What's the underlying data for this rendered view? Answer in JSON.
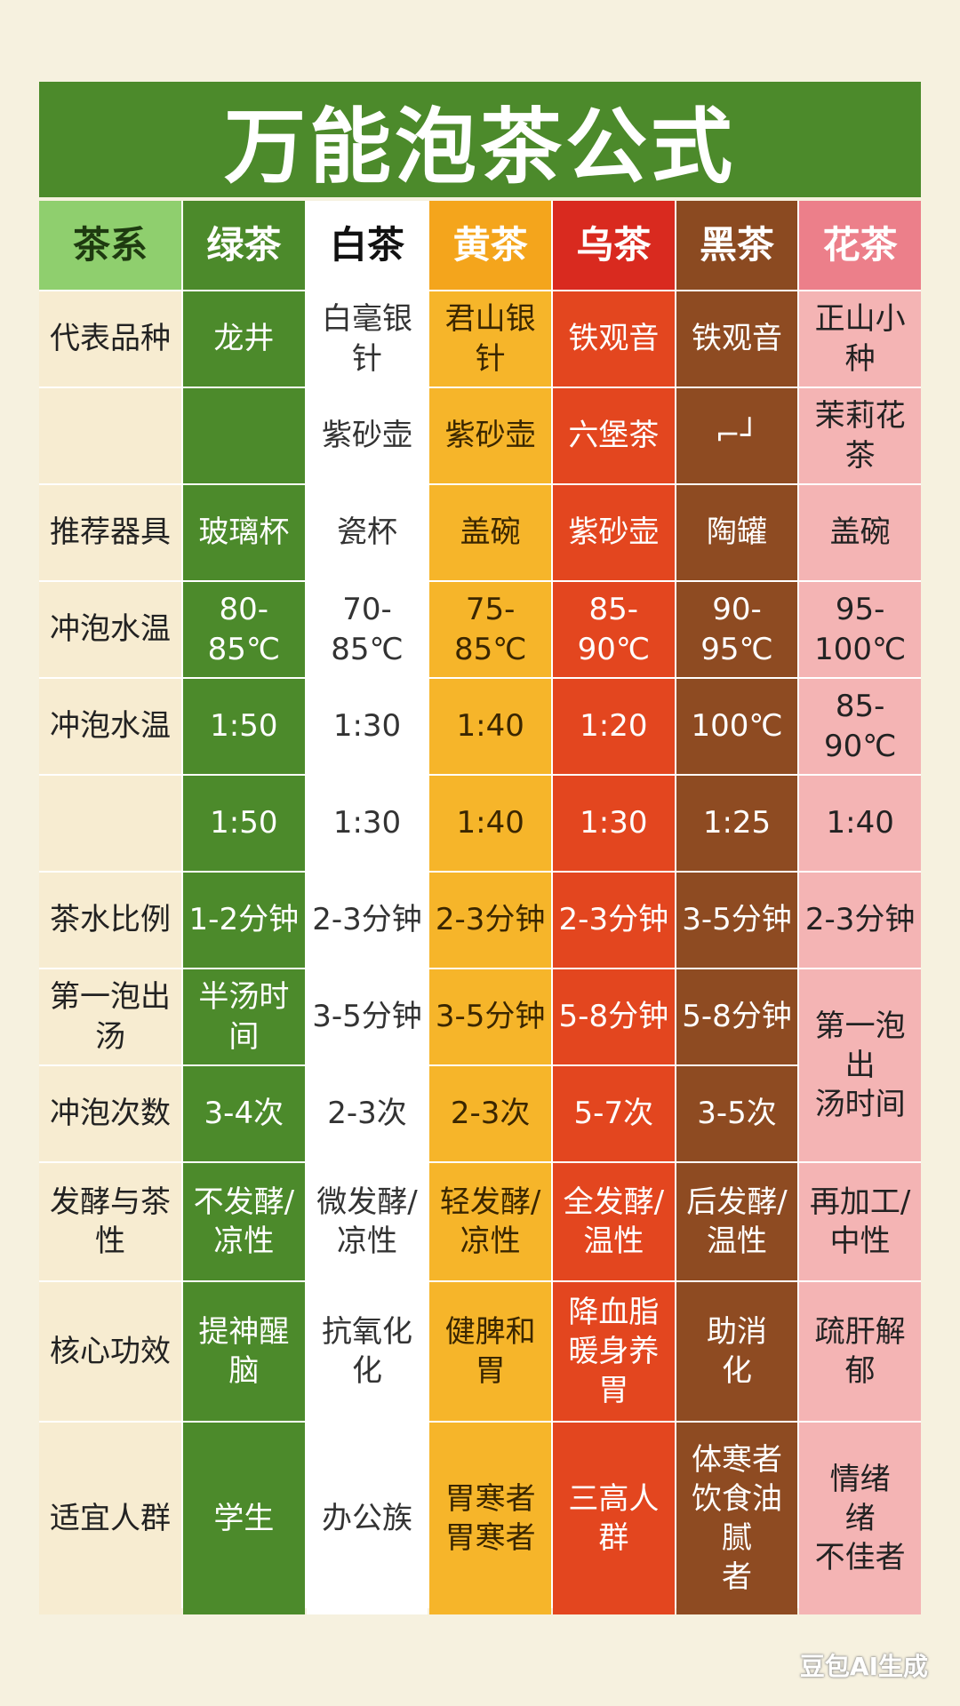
{
  "title": "万能泡茶公式",
  "header_label": "茶系",
  "columns": [
    {
      "name": "绿茶",
      "header_bg": "#4c8a2b",
      "header_fg": "#ffffff",
      "cell_bg": "#4c8a2b",
      "cell_fg": "#ffffff"
    },
    {
      "name": "白茶",
      "header_bg": "#ffffff",
      "header_fg": "#111111",
      "cell_bg": "#ffffff",
      "cell_fg": "#333333"
    },
    {
      "name": "黄茶",
      "header_bg": "#f4a51c",
      "header_fg": "#ffffff",
      "cell_bg": "#f6b52a",
      "cell_fg": "#3a2600"
    },
    {
      "name": "乌茶",
      "header_bg": "#d92a1f",
      "header_fg": "#ffffff",
      "cell_bg": "#e3461f",
      "cell_fg": "#ffffff"
    },
    {
      "name": "黑茶",
      "header_bg": "#8b4a21",
      "header_fg": "#ffffff",
      "cell_bg": "#8e4b22",
      "cell_fg": "#ffffff"
    },
    {
      "name": "花茶",
      "header_bg": "#ec7f8a",
      "header_fg": "#ffffff",
      "cell_bg": "#f4b4b4",
      "cell_fg": "#222222"
    }
  ],
  "header_label_bg": "#8fcf6e",
  "rows": [
    {
      "label": "代表品种",
      "cells": [
        "龙井",
        "白毫银针",
        "君山银针",
        "铁观音",
        "铁观音",
        "正山小种"
      ]
    },
    {
      "label": "",
      "cells": [
        "",
        "紫砂壶",
        "紫砂壶",
        "六堡茶",
        "⌐┘",
        "茉莉花茶"
      ]
    },
    {
      "label": "推荐器具",
      "cells": [
        "玻璃杯",
        "瓷杯",
        "盖碗",
        "紫砂壶",
        "陶罐",
        "盖碗"
      ]
    },
    {
      "label": "冲泡水温",
      "cells": [
        "80-85℃",
        "70-85℃",
        "75-85℃",
        "85-90℃",
        "90-95℃",
        "95-100℃"
      ]
    },
    {
      "label": "冲泡水温",
      "cells": [
        "1:50",
        "1:30",
        "1:40",
        "1:20",
        "100℃",
        "85-90℃"
      ]
    },
    {
      "label": "",
      "cells": [
        "1:50",
        "1:30",
        "1:40",
        "1:30",
        "1:25",
        "1:40"
      ]
    },
    {
      "label": "茶水比例",
      "cells": [
        "1-2分钟",
        "2-3分钟",
        "2-3分钟",
        "2-3分钟",
        "3-5分钟",
        "2-3分钟"
      ]
    },
    {
      "label": "第一泡出汤",
      "cells": [
        "半汤时间",
        "3-5分钟",
        "3-5分钟",
        "5-8分钟",
        "5-8分钟",
        "第一泡出\n汤时间"
      ]
    },
    {
      "label": "冲泡次数",
      "cells": [
        "3-4次",
        "2-3次",
        "2-3次",
        "5-7次",
        "3-5次",
        null
      ]
    },
    {
      "label": "发酵与茶性",
      "cells": [
        "不发酵/\n凉性",
        "微发酵/\n凉性",
        "轻发酵/\n凉性",
        "全发酵/\n温性",
        "后发酵/\n温性",
        "再加工/\n中性"
      ]
    },
    {
      "label": "核心功效",
      "cells": [
        "提神醒\n脑",
        "抗氧化\n化",
        "健脾和胃\n ",
        "降血脂\n暖身养胃",
        "助消\n化",
        "疏肝解\n郁"
      ]
    },
    {
      "label": "适宜人群",
      "cells": [
        "学生",
        "办公族",
        "胃寒者\n胃寒者",
        "三高人\n群",
        "体寒者\n饮食油腻\n者",
        "情绪\n绪\n不佳者"
      ]
    }
  ],
  "watermark": "豆包AI生成"
}
